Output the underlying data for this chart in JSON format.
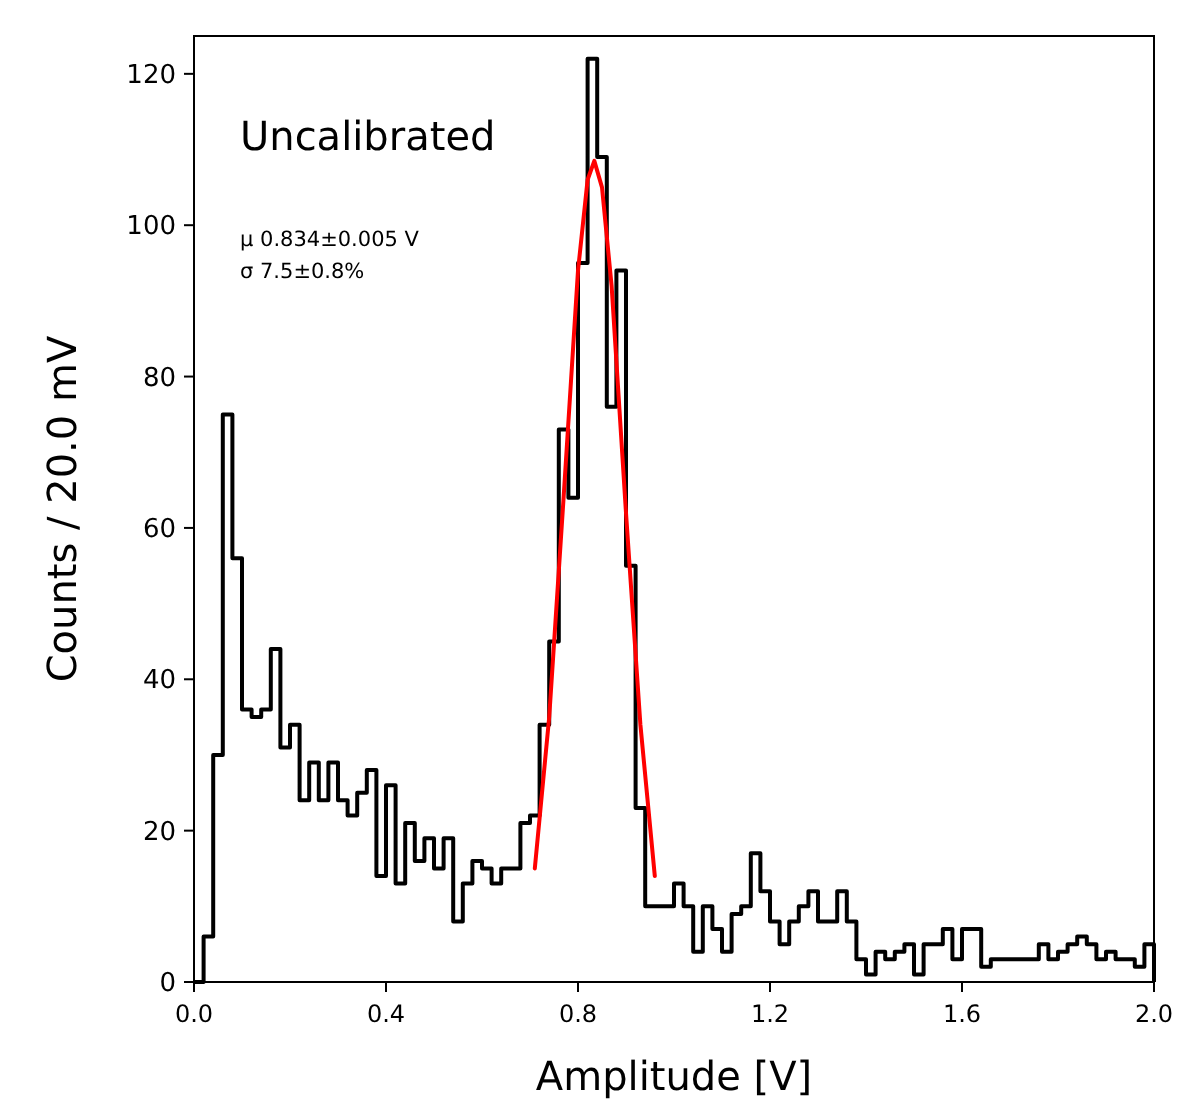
{
  "chart_data": {
    "type": "histogram",
    "xlabel": "Amplitude [V]",
    "ylabel": "Counts / 20.0 mV",
    "annotations": [
      "Uncalibrated",
      "μ  0.834±0.005 V",
      "σ  7.5±0.8%"
    ],
    "bins": [
      0,
      0.02,
      0.04,
      0.06,
      0.08,
      0.1,
      0.12,
      0.14,
      0.16,
      0.18,
      0.2,
      0.22,
      0.24,
      0.26,
      0.28,
      0.3,
      0.32,
      0.34,
      0.36,
      0.38,
      0.4,
      0.42,
      0.44,
      0.46,
      0.48,
      0.5,
      0.52,
      0.54,
      0.56,
      0.58,
      0.6,
      0.62,
      0.64,
      0.66,
      0.68,
      0.7,
      0.72,
      0.74,
      0.76,
      0.78,
      0.8,
      0.82,
      0.84,
      0.86,
      0.88,
      0.9,
      0.92,
      0.94,
      0.96,
      0.98,
      1,
      1.02,
      1.04,
      1.06,
      1.08,
      1.1,
      1.12,
      1.14,
      1.16,
      1.18,
      1.2,
      1.22,
      1.24,
      1.26,
      1.28,
      1.3,
      1.32,
      1.34,
      1.36,
      1.38,
      1.4,
      1.42,
      1.44,
      1.46,
      1.48,
      1.5,
      1.52,
      1.54,
      1.56,
      1.58,
      1.6,
      1.62,
      1.64,
      1.66,
      1.68,
      1.7,
      1.72,
      1.74,
      1.76,
      1.78,
      1.8,
      1.82,
      1.84,
      1.86,
      1.88,
      1.9,
      1.92,
      1.94,
      1.96,
      1.98,
      2
    ],
    "series": [
      {
        "color": "#000000",
        "values": [
          0,
          6,
          30,
          75,
          56,
          36,
          35,
          36,
          44,
          31,
          34,
          24,
          29,
          24,
          29,
          24,
          22,
          25,
          28,
          14,
          26,
          13,
          21,
          16,
          19,
          15,
          19,
          8,
          13,
          16,
          15,
          13,
          15,
          15,
          21,
          22,
          34,
          45,
          73,
          64,
          95,
          122,
          109,
          76,
          94,
          55,
          23,
          10,
          10,
          10,
          13,
          10,
          4,
          10,
          7,
          4,
          9,
          10,
          17,
          12,
          8,
          5,
          8,
          10,
          12,
          8,
          8,
          12,
          8,
          3,
          1,
          4,
          3,
          4,
          5,
          1,
          5,
          5,
          7,
          3,
          7,
          7,
          2,
          3,
          3,
          3,
          3,
          3,
          5,
          3,
          4,
          5,
          6,
          5,
          3,
          4,
          3,
          3,
          2,
          5
        ]
      },
      {
        "type": "line",
        "color": "#ff0000",
        "x": [
          0.71,
          0.74,
          0.77,
          0.8,
          0.82,
          0.834,
          0.85,
          0.87,
          0.9,
          0.93,
          0.96
        ],
        "values": [
          15,
          35,
          64,
          94,
          106,
          108.5,
          105,
          92,
          62,
          34,
          14
        ]
      }
    ],
    "xlim": [
      0,
      2
    ],
    "ylim": [
      0,
      125
    ],
    "xticks": [
      {
        "value": 0,
        "label": "0.0"
      },
      {
        "value": 0.4,
        "label": "0.4"
      },
      {
        "value": 0.8,
        "label": "0.8"
      },
      {
        "value": 1.2,
        "label": "1.2"
      },
      {
        "value": 1.6,
        "label": "1.6"
      },
      {
        "value": 2,
        "label": "2.0"
      }
    ],
    "yticks": [
      0,
      20,
      40,
      60,
      80,
      100,
      120
    ],
    "grid": false
  }
}
